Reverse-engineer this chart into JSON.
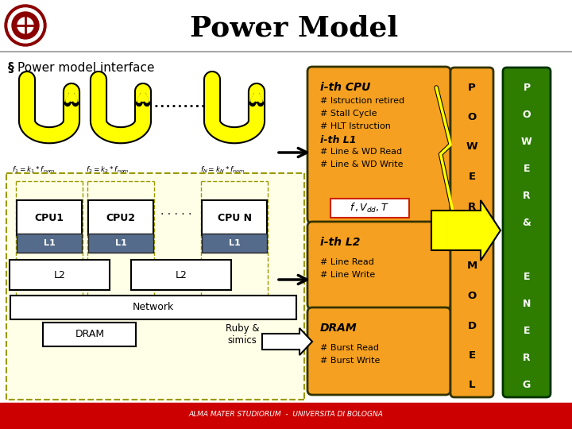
{
  "title": "Power Model",
  "title_fontsize": 26,
  "background_color": "#ffffff",
  "orange_color": "#F5A020",
  "green_color": "#2E7D00",
  "yellow_color": "#FFFF00",
  "light_yellow_bg": "#FFFFE8",
  "footer_red": "#CC0000",
  "footer_text": "ALMA MATER STUDIORUM  -  UNIVERSITA DI BOLOGNA",
  "bullet_text": "Power model interface",
  "cpu_box_lines": [
    "# Istruction retired",
    "# Stall Cycle",
    "# HLT Istruction"
  ],
  "l1_lines": [
    "i-th L1",
    "# Line & WD Read",
    "# Line & WD Write"
  ],
  "formula_text": "f ,V_{dd},T",
  "l2_box_title": "i-th L2",
  "l2_box_lines": [
    "# Line Read",
    "# Line Write"
  ],
  "dram_box_title": "DRAM",
  "dram_box_lines": [
    "# Burst Read",
    "# Burst Write"
  ],
  "ruby_text": "Ruby &\nsimics",
  "cpu_labels": [
    "CPU1",
    "CPU2",
    "CPU N"
  ],
  "l1_label": "L1",
  "l2_label": "L2",
  "network_label": "Network",
  "dram_label": "DRAM",
  "power_model_letters": [
    "P",
    "O",
    "W",
    "E",
    "R",
    "",
    "M",
    "O",
    "D",
    "E",
    "L"
  ],
  "power_energy_letters": [
    "P",
    "O",
    "W",
    "E",
    "R",
    "&",
    "",
    "E",
    "N",
    "E",
    "R",
    "G"
  ]
}
